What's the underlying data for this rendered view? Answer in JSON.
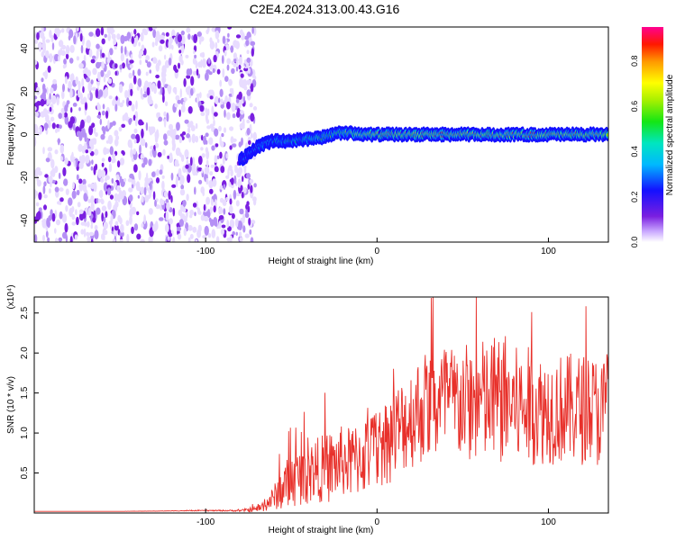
{
  "title": "C2E4.2024.313.00.43.G16",
  "colors": {
    "snr_line": "#e8302a",
    "spectrum_low": "#e6d8ff",
    "spectrum_mid": "#7a1fe0"
  },
  "chart_data": [
    {
      "type": "heatmap",
      "title": "C2E4.2024.313.00.43.G16",
      "xlabel": "Height of straight line (km)",
      "ylabel": "Frequency (Hz)",
      "xlim": [
        -200,
        135
      ],
      "ylim": [
        -50,
        50
      ],
      "x_ticks": [
        -100,
        0,
        100
      ],
      "x_tick_labels": [
        "-100",
        "0",
        "100"
      ],
      "y_ticks": [
        -40,
        -20,
        0,
        20,
        40
      ],
      "y_tick_labels": [
        "-40",
        "-20",
        "0",
        "20",
        "40"
      ],
      "grid": false,
      "colorbar": {
        "label": "Normalized spectral amplitude",
        "range": [
          0,
          0.95
        ],
        "ticks": [
          0,
          0.2,
          0.4,
          0.6,
          0.8
        ],
        "tick_labels": [
          "0.0",
          "0.2",
          "0.4",
          "0.6",
          "0.8"
        ],
        "colormap": "rainbow-white"
      },
      "noise_region_x": [
        -200,
        -75
      ],
      "ridge": {
        "x": [
          -80,
          -75,
          -70,
          -65,
          -60,
          -50,
          -40,
          -30,
          -20,
          -10,
          0,
          25,
          50,
          75,
          100,
          135
        ],
        "frequency": [
          -12,
          -9,
          -6,
          -4,
          -3,
          -3,
          -2,
          -1,
          1,
          0,
          0,
          0,
          0,
          0,
          0,
          0
        ],
        "amplitude": [
          0.3,
          0.35,
          0.4,
          0.45,
          0.5,
          0.55,
          0.55,
          0.6,
          0.65,
          0.75,
          0.85,
          0.85,
          0.85,
          0.85,
          0.85,
          0.85
        ]
      }
    },
    {
      "type": "line",
      "xlabel": "Height of straight line (km)",
      "ylabel": "SNR (10 * v/v)",
      "y_scale_label": "(x10⁴)",
      "xlim": [
        -200,
        135
      ],
      "ylim": [
        0,
        2.7
      ],
      "x_ticks": [
        -100,
        0,
        100
      ],
      "x_tick_labels": [
        "-100",
        "0",
        "100"
      ],
      "y_ticks": [
        0.5,
        1.0,
        1.5,
        2.0,
        2.5
      ],
      "y_tick_labels": [
        "0.5",
        "1.0",
        "1.5",
        "2.0",
        "2.5"
      ],
      "grid": false,
      "series": [
        {
          "x": [
            -200,
            -150,
            -100,
            -80,
            -70,
            -65,
            -60,
            -55,
            -50,
            -45,
            -40,
            -35,
            -30,
            -25,
            -20,
            -15,
            -10,
            -5,
            0,
            5,
            10,
            15,
            20,
            25,
            30,
            35,
            40,
            45,
            50,
            55,
            60,
            65,
            70,
            75,
            80,
            85,
            90,
            95,
            100,
            105,
            110,
            115,
            120,
            125,
            130,
            135
          ],
          "y": [
            0.02,
            0.02,
            0.03,
            0.03,
            0.05,
            0.1,
            0.2,
            0.32,
            0.4,
            0.45,
            0.5,
            0.55,
            0.55,
            0.6,
            0.65,
            0.62,
            0.7,
            0.75,
            0.8,
            0.9,
            1.0,
            1.1,
            1.2,
            1.3,
            1.35,
            1.35,
            1.4,
            1.35,
            1.4,
            1.35,
            1.4,
            1.35,
            1.4,
            1.4,
            1.35,
            1.3,
            1.35,
            1.3,
            1.3,
            1.3,
            1.3,
            1.3,
            1.3,
            1.3,
            1.25,
            1.3
          ],
          "spread": [
            0.0,
            0.0,
            0.005,
            0.01,
            0.04,
            0.08,
            0.15,
            0.3,
            0.35,
            0.35,
            0.4,
            0.4,
            0.45,
            0.45,
            0.45,
            0.45,
            0.5,
            0.5,
            0.5,
            0.55,
            0.6,
            0.6,
            0.65,
            0.7,
            0.7,
            0.75,
            0.75,
            0.75,
            0.75,
            0.75,
            0.8,
            0.8,
            0.8,
            0.85,
            0.75,
            0.75,
            0.75,
            0.7,
            0.7,
            0.7,
            0.7,
            0.7,
            0.7,
            0.7,
            0.7,
            0.7
          ]
        }
      ]
    }
  ]
}
